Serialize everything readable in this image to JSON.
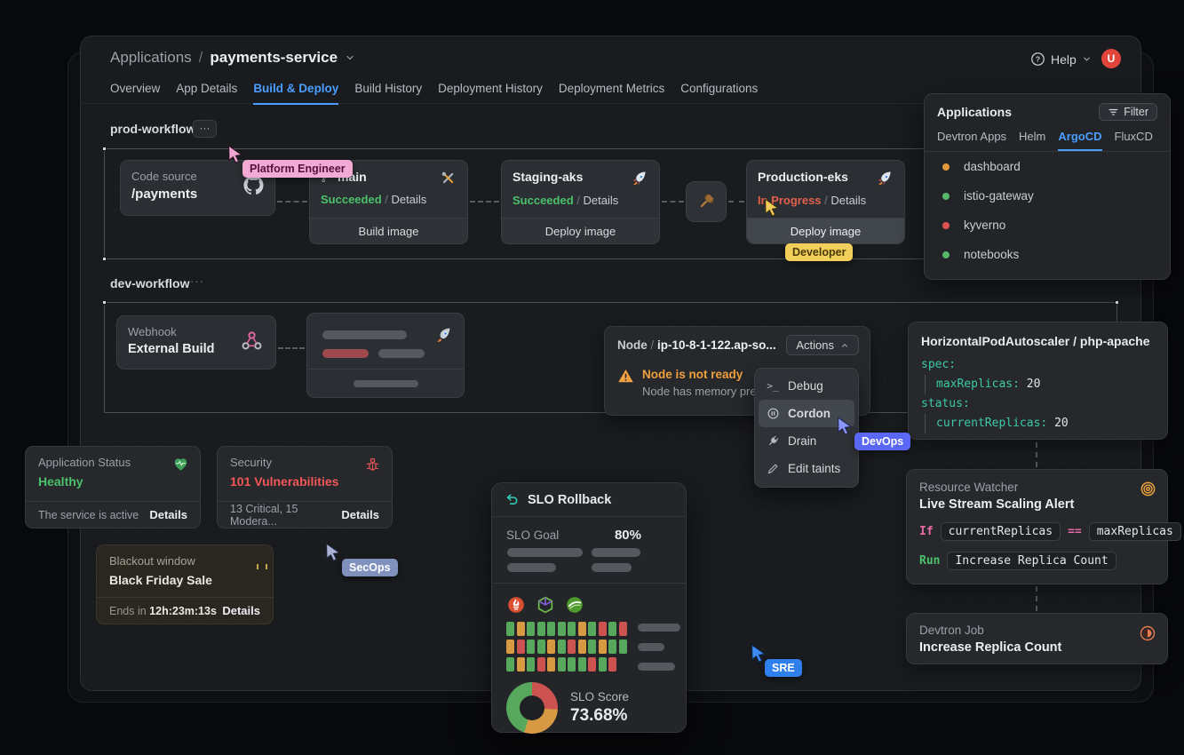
{
  "header": {
    "breadcrumb": {
      "section": "Applications",
      "separator": "/",
      "app": "payments-service"
    },
    "help_label": "Help",
    "avatar_initial": "U",
    "tabs": [
      {
        "label": "Overview"
      },
      {
        "label": "App Details"
      },
      {
        "label": "Build & Deploy",
        "active": true
      },
      {
        "label": "Build History"
      },
      {
        "label": "Deployment History"
      },
      {
        "label": "Deployment Metrics"
      },
      {
        "label": "Configurations"
      }
    ]
  },
  "colors": {
    "accent_blue": "#4a9eff",
    "success_green": "#4cc06a",
    "danger_red": "#f25757",
    "warning_orange": "#f0a03e",
    "code_teal": "#3ec9a7",
    "code_pink": "#e86aa6"
  },
  "prod_workflow": {
    "title": "prod-workflow",
    "menu_dots": "···",
    "code_source": {
      "label": "Code source",
      "repo": "/payments"
    },
    "build": {
      "branch": "main",
      "status": "Succeeded",
      "separator": "/",
      "details": "Details",
      "action": "Build image"
    },
    "staging": {
      "name": "Staging-aks",
      "status": "Succeeded",
      "separator": "/",
      "details": "Details",
      "action": "Deploy image"
    },
    "production": {
      "name": "Production-eks",
      "status": "In Progress",
      "separator": "/",
      "details": "Details",
      "action": "Deploy image"
    }
  },
  "dev_workflow": {
    "title": "dev-workflow",
    "menu_dots": "···",
    "webhook": {
      "label": "Webhook",
      "name": "External Build"
    }
  },
  "applications_panel": {
    "title": "Applications",
    "filter_label": "Filter",
    "tabs": [
      {
        "label": "Devtron Apps"
      },
      {
        "label": "Helm"
      },
      {
        "label": "ArgoCD",
        "active": true
      },
      {
        "label": "FluxCD"
      }
    ],
    "items": [
      {
        "name": "dashboard",
        "dot_color": "#e09a3c"
      },
      {
        "name": "istio-gateway",
        "dot_color": "#57b76a"
      },
      {
        "name": "kyverno",
        "dot_color": "#e05252"
      },
      {
        "name": "notebooks",
        "dot_color": "#57b76a"
      }
    ]
  },
  "node_panel": {
    "kind": "Node",
    "separator": "/",
    "name": "ip-10-8-1-122.ap-so...",
    "actions_label": "Actions",
    "warning_title": "Node is not ready",
    "warning_desc": "Node has memory pre...",
    "menu_items": [
      {
        "label": "Debug",
        "icon": "terminal-icon"
      },
      {
        "label": "Cordon",
        "icon": "pause-circle-icon",
        "active": true
      },
      {
        "label": "Drain",
        "icon": "plug-icon"
      },
      {
        "label": "Edit taints",
        "icon": "pen-icon"
      }
    ]
  },
  "hpa_panel": {
    "title": "HorizontalPodAutoscaler / php-apache",
    "lines": [
      {
        "key": "spec:",
        "value": ""
      },
      {
        "key": "maxReplicas:",
        "value": "20"
      },
      {
        "key": "status:",
        "value": ""
      },
      {
        "key": "currentReplicas:",
        "value": "20"
      }
    ]
  },
  "status_card": {
    "title": "Application Status",
    "status": "Healthy",
    "footer_text": "The service is active",
    "details_label": "Details"
  },
  "security_card": {
    "title": "Security",
    "status": "101 Vulnerabilities",
    "footer_text": "13 Critical, 15 Modera...",
    "details_label": "Details"
  },
  "blackout_card": {
    "title": "Blackout window",
    "name": "Black Friday Sale",
    "footer_prefix": "Ends in",
    "countdown": "12h:23m:13s",
    "details_label": "Details"
  },
  "slo_panel": {
    "title": "SLO Rollback",
    "goal_label": "SLO Goal",
    "goal_value": "80%",
    "score_label": "SLO Score",
    "score_value": "73.68%",
    "monitor_icons": [
      "prometheus",
      "cube",
      "sonar"
    ],
    "heatmap": {
      "palette": {
        "g": "#57a85c",
        "o": "#d79a43",
        "r": "#cd5351"
      },
      "rows": [
        [
          "g",
          "o",
          "g",
          "g",
          "g",
          "g",
          "g",
          "o",
          "g",
          "r",
          "g",
          "r"
        ],
        [
          "o",
          "r",
          "g",
          "g",
          "o",
          "g",
          "r",
          "o",
          "g",
          "o",
          "g",
          "g"
        ],
        [
          "g",
          "o",
          "g",
          "r",
          "o",
          "g",
          "g",
          "g",
          "r",
          "g",
          "r"
        ]
      ]
    },
    "donut": {
      "segments": [
        {
          "color": "#cd5351",
          "value": 26
        },
        {
          "color": "#d79a43",
          "value": 29
        },
        {
          "color": "#57a85c",
          "value": 45
        }
      ]
    }
  },
  "resource_watcher": {
    "title": "Resource Watcher",
    "name": "Live Stream Scaling Alert",
    "if_label": "If",
    "condition_left": "currentReplicas",
    "operator": "==",
    "condition_right": "maxReplicas",
    "run_label": "Run",
    "run_action": "Increase Replica Count"
  },
  "devtron_job": {
    "title": "Devtron Job",
    "name": "Increase Replica Count"
  },
  "cursors": [
    {
      "label": "Platform Engineer",
      "color": "#f0a5d2"
    },
    {
      "label": "Developer",
      "color": "#f2cb5a"
    },
    {
      "label": "DevOps",
      "color": "#8b97f7"
    },
    {
      "label": "SecOps",
      "color": "#aab3d6"
    },
    {
      "label": "SRE",
      "color": "#3d8df5"
    }
  ]
}
